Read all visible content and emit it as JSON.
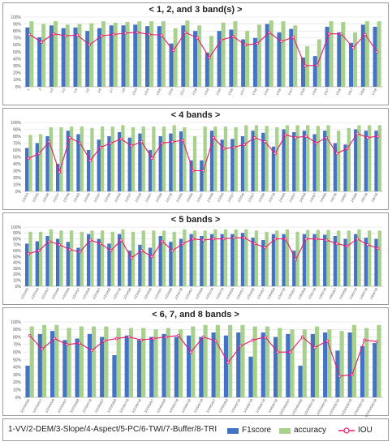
{
  "chart_data": [
    {
      "type": "bar",
      "title": "< 1, 2, and 3 band(s) >",
      "ylim": [
        0,
        100
      ],
      "yticks": [
        "0%",
        "10%",
        "20%",
        "30%",
        "40%",
        "50%",
        "60%",
        "70%",
        "80%",
        "90%",
        "100%"
      ],
      "categories": [
        "1",
        "2",
        "1/2",
        "1/3",
        "1/4",
        "1/5",
        "1/6",
        "1/7",
        "1/8",
        "1/2/3",
        "1/2/4",
        "1/2/5",
        "1/2/6",
        "1/2/7",
        "1/2/8",
        "1/3/4",
        "1/3/5",
        "1/3/6",
        "1/3/7",
        "1/3/8",
        "1/4/5",
        "1/4/6",
        "1/4/7",
        "1/4/8",
        "1/5/6",
        "1/5/7",
        "1/5/8",
        "1/6/7",
        "1/6/8",
        "1/7/8"
      ],
      "series": [
        {
          "name": "F1score",
          "type": "bar",
          "color": "#4472C4",
          "values": [
            85,
            71,
            88,
            84,
            85,
            80,
            84,
            88,
            88,
            89,
            87,
            87,
            62,
            88,
            80,
            49,
            80,
            82,
            68,
            70,
            90,
            78,
            83,
            42,
            44,
            86,
            78,
            63,
            89,
            86
          ]
        },
        {
          "name": "accuracy",
          "type": "bar",
          "color": "#A9D18E",
          "values": [
            94,
            90,
            94,
            89,
            90,
            91,
            94,
            92,
            93,
            94,
            94,
            94,
            84,
            95,
            88,
            73,
            92,
            94,
            80,
            89,
            95,
            94,
            88,
            58,
            68,
            94,
            93,
            78,
            94,
            94
          ]
        },
        {
          "name": "IOU",
          "type": "line",
          "color": "#E8196E",
          "values": [
            75,
            64,
            76,
            73,
            74,
            60,
            73,
            75,
            77,
            78,
            75,
            74,
            52,
            78,
            70,
            42,
            67,
            72,
            60,
            62,
            78,
            65,
            71,
            30,
            31,
            76,
            76,
            56,
            75,
            50
          ]
        }
      ]
    },
    {
      "type": "bar",
      "title": "< 4 bands >",
      "ylim": [
        0,
        100
      ],
      "yticks": [
        "0%",
        "10%",
        "20%",
        "30%",
        "40%",
        "50%",
        "60%",
        "70%",
        "80%",
        "90%",
        "100%"
      ],
      "categories": [
        "1/2/3/4",
        "1/2/3/5",
        "1/2/3/6",
        "1/2/3/7",
        "1/2/3/8",
        "1/2/4/5",
        "1/2/4/6",
        "1/2/4/7",
        "1/2/4/8",
        "1/2/5/6",
        "1/2/5/7",
        "1/2/5/8",
        "1/2/6/7",
        "1/2/6/8",
        "1/2/7/8",
        "1/3/4/5",
        "1/3/4/6",
        "1/3/4/7",
        "1/3/4/8",
        "1/3/5/6",
        "1/3/5/7",
        "1/3/5/8",
        "1/3/6/7",
        "1/3/6/8",
        "1/3/7/8",
        "1/4/5/6",
        "1/4/5/7",
        "1/4/5/8",
        "1/4/6/7",
        "1/4/6/8",
        "1/4/7/8",
        "1/5/6/7",
        "1/5/6/8",
        "1/5/7/8",
        "1/6/7/8"
      ],
      "series": [
        {
          "name": "F1score",
          "type": "bar",
          "color": "#4472C4",
          "values": [
            63,
            70,
            80,
            40,
            88,
            83,
            60,
            75,
            80,
            86,
            78,
            84,
            60,
            80,
            84,
            87,
            45,
            45,
            88,
            75,
            76,
            80,
            88,
            85,
            65,
            90,
            86,
            88,
            83,
            88,
            70,
            68,
            90,
            88,
            88
          ]
        },
        {
          "name": "accuracy",
          "type": "bar",
          "color": "#A9D18E",
          "values": [
            82,
            83,
            93,
            93,
            94,
            94,
            92,
            94,
            94,
            96,
            93,
            94,
            94,
            94,
            96,
            93,
            80,
            94,
            94,
            94,
            93,
            96,
            96,
            95,
            93,
            96,
            96,
            96,
            95,
            96,
            88,
            92,
            96,
            96,
            96
          ]
        },
        {
          "name": "IOU",
          "type": "line",
          "color": "#E8196E",
          "values": [
            48,
            55,
            72,
            28,
            78,
            70,
            45,
            64,
            70,
            76,
            66,
            72,
            48,
            70,
            72,
            74,
            30,
            30,
            78,
            62,
            64,
            68,
            78,
            72,
            55,
            82,
            78,
            80,
            70,
            78,
            55,
            62,
            84,
            78,
            80
          ]
        }
      ]
    },
    {
      "type": "bar",
      "title": "< 5 bands >",
      "ylim": [
        0,
        100
      ],
      "yticks": [
        "0%",
        "10%",
        "20%",
        "30%",
        "40%",
        "50%",
        "60%",
        "70%",
        "80%",
        "90%",
        "100%"
      ],
      "categories": [
        "1/2/3/4/5",
        "1/2/3/4/6",
        "1/2/3/4/7",
        "1/2/3/4/8",
        "1/2/3/5/6",
        "1/2/3/5/7",
        "1/2/3/5/8",
        "1/2/3/6/7",
        "1/2/3/6/8",
        "1/2/3/7/8",
        "1/2/4/5/6",
        "1/2/4/5/7",
        "1/2/4/5/8",
        "1/2/4/6/7",
        "1/2/4/6/8",
        "1/2/4/7/8",
        "1/2/5/6/7",
        "1/2/5/6/8",
        "1/2/5/7/8",
        "1/2/6/7/8",
        "1/3/4/5/6",
        "1/3/4/5/7",
        "1/3/4/5/8",
        "1/3/4/6/7",
        "1/3/4/6/8",
        "1/3/4/7/8",
        "1/3/5/6/7",
        "1/3/5/6/8",
        "1/3/5/7/8",
        "1/3/6/7/8",
        "1/4/5/6/7",
        "1/4/5/6/8",
        "1/4/5/7/8",
        "1/4/6/7/8",
        "1/5/6/7/8"
      ],
      "series": [
        {
          "name": "F1score",
          "type": "bar",
          "color": "#4472C4",
          "values": [
            72,
            76,
            85,
            80,
            75,
            65,
            88,
            80,
            72,
            88,
            60,
            70,
            65,
            85,
            75,
            80,
            88,
            85,
            88,
            88,
            88,
            90,
            82,
            78,
            88,
            88,
            60,
            88,
            88,
            87,
            85,
            80,
            88,
            82,
            80
          ]
        },
        {
          "name": "accuracy",
          "type": "bar",
          "color": "#A9D18E",
          "values": [
            92,
            92,
            96,
            94,
            94,
            92,
            94,
            94,
            92,
            96,
            92,
            94,
            94,
            94,
            92,
            96,
            94,
            94,
            96,
            96,
            96,
            96,
            94,
            92,
            94,
            96,
            92,
            95,
            95,
            95,
            94,
            94,
            96,
            94,
            94
          ]
        },
        {
          "name": "IOU",
          "type": "line",
          "color": "#E8196E",
          "values": [
            55,
            60,
            76,
            70,
            62,
            58,
            78,
            72,
            60,
            78,
            48,
            60,
            50,
            76,
            60,
            72,
            80,
            78,
            80,
            80,
            82,
            82,
            72,
            65,
            80,
            80,
            45,
            80,
            80,
            78,
            72,
            68,
            80,
            70,
            64
          ]
        }
      ]
    },
    {
      "type": "bar",
      "title": "< 6, 7, and 8 bands >",
      "ylim": [
        0,
        100
      ],
      "yticks": [
        "0%",
        "10%",
        "20%",
        "30%",
        "40%",
        "50%",
        "60%",
        "70%",
        "80%",
        "90%",
        "100%"
      ],
      "categories": [
        "1/2/3/4/5/6",
        "1/2/3/4/5/7",
        "1/2/3/4/5/8",
        "1/2/3/4/6/7",
        "1/2/3/4/6/8",
        "1/2/3/4/7/8",
        "1/2/3/5/6/7",
        "1/2/3/5/6/8",
        "1/2/3/5/7/8",
        "1/2/3/6/7/8",
        "1/2/4/5/6/7",
        "1/2/4/5/6/8",
        "1/2/4/5/7/8",
        "1/2/4/6/7/8",
        "1/2/5/6/7/8",
        "1/3/4/5/6/7",
        "1/3/4/5/6/8",
        "1/3/4/5/7/8",
        "1/3/4/6/7/8",
        "1/3/5/6/7/8",
        "1/4/5/6/7/8",
        "1/2/3/4/5/6/7",
        "1/2/3/4/5/6/8",
        "1/2/3/4/5/7/8",
        "1/2/3/4/6/7/8",
        "1/2/3/5/6/7/8",
        "1/2/4/5/6/7/8",
        "1/3/4/5/6/7/8",
        "1/2/3/4/5/6/7/8"
      ],
      "series": [
        {
          "name": "F1score",
          "type": "bar",
          "color": "#4472C4",
          "values": [
            42,
            84,
            88,
            76,
            78,
            84,
            80,
            56,
            82,
            76,
            80,
            84,
            80,
            82,
            80,
            86,
            82,
            86,
            54,
            86,
            80,
            84,
            42,
            84,
            86,
            62,
            86,
            68,
            72
          ]
        },
        {
          "name": "accuracy",
          "type": "bar",
          "color": "#A9D18E",
          "values": [
            94,
            96,
            96,
            92,
            94,
            94,
            94,
            92,
            92,
            92,
            90,
            92,
            90,
            94,
            96,
            96,
            96,
            96,
            94,
            94,
            92,
            90,
            90,
            94,
            90,
            88,
            96,
            92,
            96
          ]
        },
        {
          "name": "IOU",
          "type": "line",
          "color": "#E8196E",
          "values": [
            82,
            64,
            78,
            70,
            72,
            62,
            75,
            78,
            80,
            76,
            78,
            80,
            82,
            60,
            80,
            75,
            46,
            68,
            76,
            80,
            60,
            60,
            80,
            66,
            75,
            28,
            30,
            76,
            74
          ]
        }
      ]
    }
  ],
  "legend": {
    "note": "1-VV/2-DEM/3-Slope/4-Aspect/5-PC/6-TWI/7-Buffer/8-TRI",
    "items": [
      {
        "label": "F1score",
        "color": "#4472C4"
      },
      {
        "label": "accuracy",
        "color": "#A9D18E"
      },
      {
        "label": "IOU",
        "color": "#E8196E"
      }
    ]
  }
}
